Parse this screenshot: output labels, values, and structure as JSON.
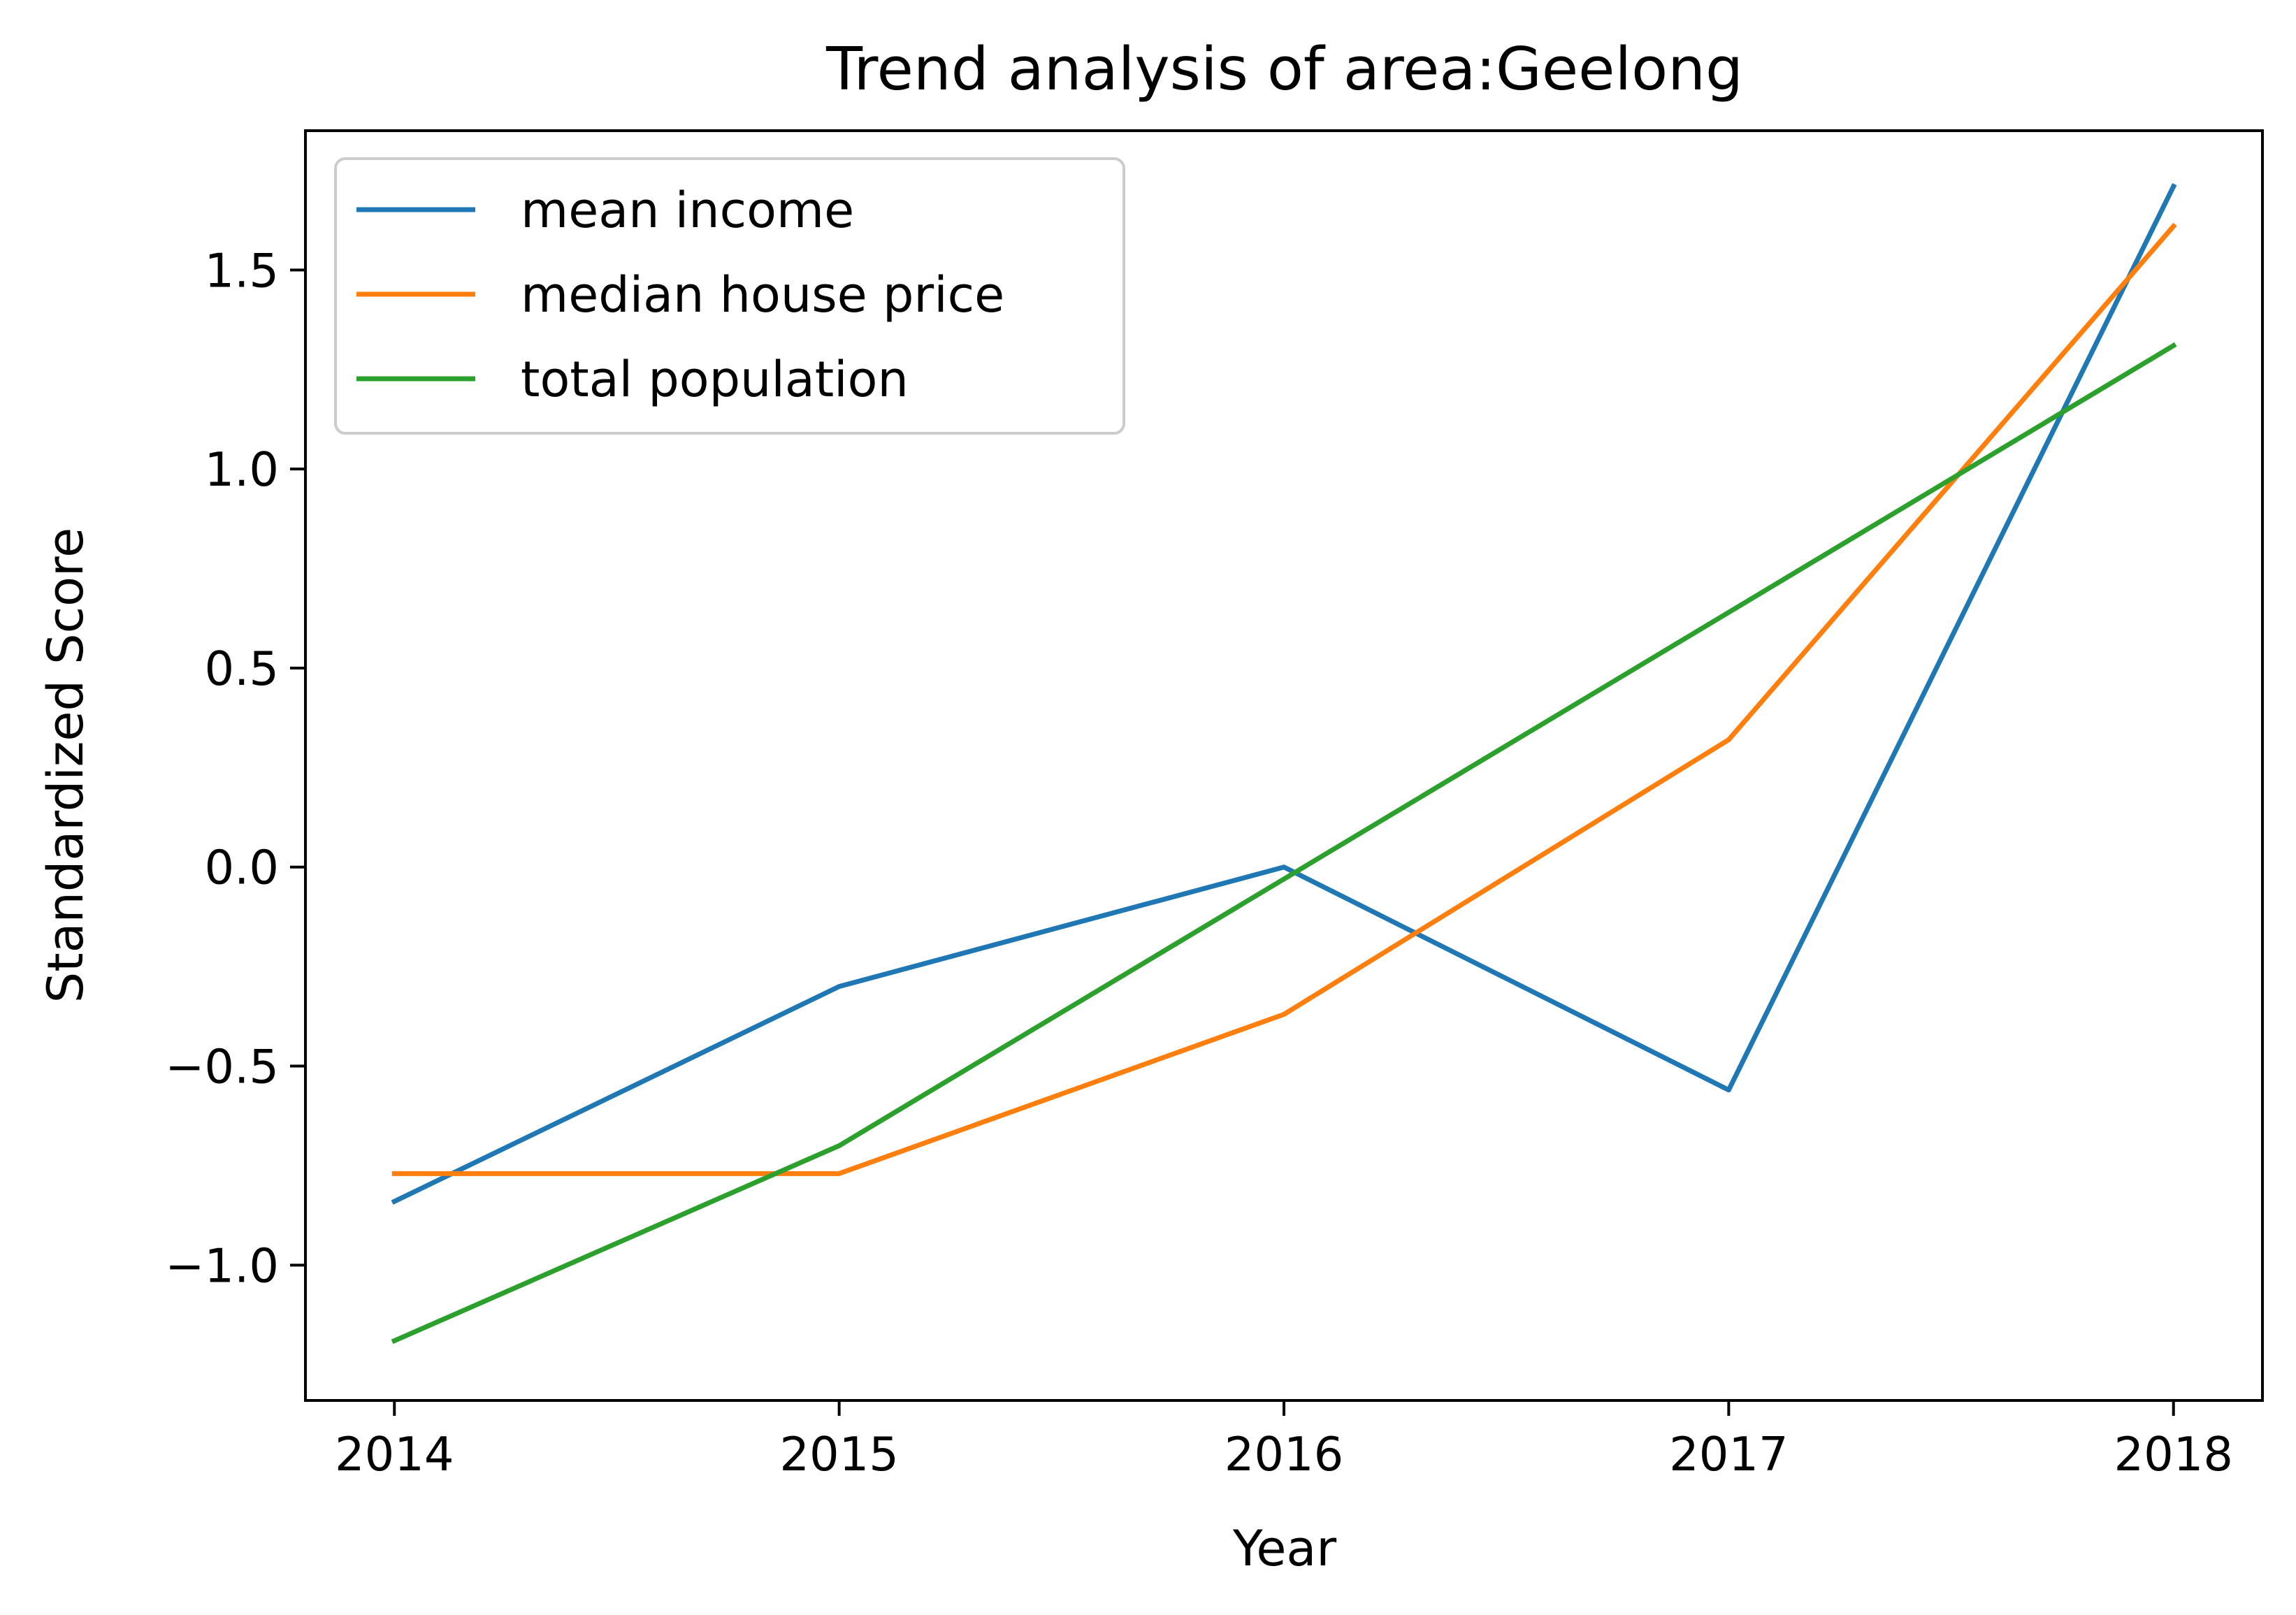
{
  "chart_data": {
    "type": "line",
    "title": "Trend analysis of area:Geelong",
    "xlabel": "Year",
    "ylabel": "Standardized Score",
    "x": [
      2014,
      2015,
      2016,
      2017,
      2018
    ],
    "x_tick_labels": [
      "2014",
      "2015",
      "2016",
      "2017",
      "2018"
    ],
    "y_ticks": [
      -1.0,
      -0.5,
      0.0,
      0.5,
      1.0,
      1.5
    ],
    "y_tick_labels": [
      "−1.0",
      "−0.5",
      "0.0",
      "0.5",
      "1.0",
      "1.5"
    ],
    "xlim": [
      2013.8,
      2018.2
    ],
    "ylim": [
      -1.34,
      1.85
    ],
    "grid": false,
    "legend_position": "top-left",
    "series": [
      {
        "name": "mean income",
        "color": "#1f77b4",
        "values": [
          -0.84,
          -0.3,
          0.0,
          -0.56,
          1.71
        ]
      },
      {
        "name": "median house price",
        "color": "#ff7f0e",
        "values": [
          -0.77,
          -0.77,
          -0.37,
          0.32,
          1.61
        ]
      },
      {
        "name": "total population",
        "color": "#2ca02c",
        "values": [
          -1.19,
          -0.7,
          -0.03,
          0.64,
          1.31
        ]
      }
    ]
  }
}
